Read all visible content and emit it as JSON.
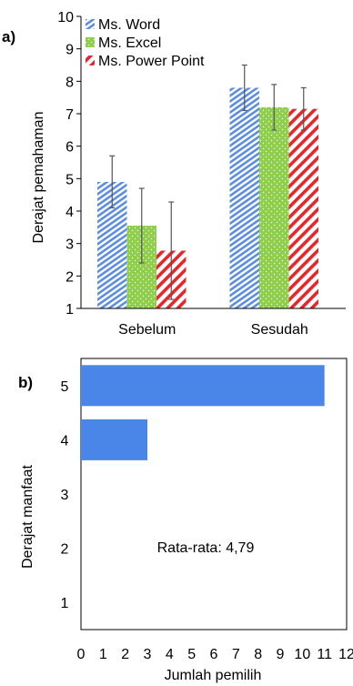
{
  "chart_data": [
    {
      "panel_label": "a)",
      "type": "bar",
      "ylabel": "Derajat pemahaman",
      "ylim": [
        1,
        10
      ],
      "yticks": [
        "1",
        "2",
        "3",
        "4",
        "5",
        "6",
        "7",
        "8",
        "9",
        "10"
      ],
      "categories": [
        "Sebelum",
        "Sesudah"
      ],
      "series": [
        {
          "name": "Ms. Word",
          "values": [
            4.9,
            7.8
          ],
          "error": [
            0.8,
            0.7
          ],
          "color": "#5b8de0",
          "pattern": "diagonal-stripes"
        },
        {
          "name": "Ms. Excel",
          "values": [
            3.55,
            7.2
          ],
          "error": [
            1.15,
            0.7
          ],
          "color": "#8ecf4a",
          "pattern": "dots"
        },
        {
          "name": "Ms. Power Point",
          "values": [
            2.78,
            7.15
          ],
          "error": [
            1.5,
            0.65
          ],
          "color": "#e8262a",
          "pattern": "diagonal-stripes"
        }
      ],
      "legend_position": "top-left",
      "grid": false
    },
    {
      "panel_label": "b)",
      "type": "bar",
      "orientation": "horizontal",
      "xlabel": "Jumlah pemilih",
      "ylabel": "Derajat manfaat",
      "xlim": [
        0,
        12
      ],
      "xticks": [
        "0",
        "1",
        "2",
        "3",
        "4",
        "5",
        "6",
        "7",
        "8",
        "9",
        "10",
        "11",
        "12"
      ],
      "categories": [
        "1",
        "2",
        "3",
        "4",
        "5"
      ],
      "values": [
        0,
        0,
        0,
        3,
        11
      ],
      "color": "#4a86e8",
      "annotation": "Rata-rata: 4,79",
      "grid": false
    }
  ]
}
